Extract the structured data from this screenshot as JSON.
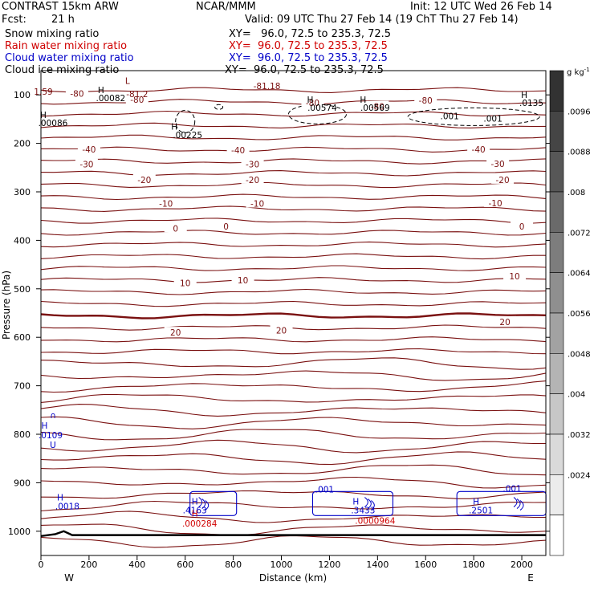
{
  "header": {
    "model": "CONTRAST 15km ARW",
    "center": "NCAR/MMM",
    "init": "Init: 12 UTC Wed 26 Feb 14",
    "fcst_label": "Fcst:",
    "fcst_value": "21 h",
    "valid": "Valid: 09 UTC Thu 27 Feb 14 (19 ChT Thu 27 Feb 14)"
  },
  "fields": [
    {
      "label": "Snow mixing ratio",
      "xy": "XY=   96.0, 72.5 to 235.3, 72.5",
      "color": "#000000"
    },
    {
      "label": "Rain water mixing ratio",
      "xy": "XY=  96.0, 72.5 to 235.3, 72.5",
      "color": "#d00000"
    },
    {
      "label": "Cloud water mixing ratio",
      "xy": "XY=  96.0, 72.5 to 235.3, 72.5",
      "color": "#0000c8"
    },
    {
      "label": "Cloud ice mixing ratio",
      "xy": "XY=  96.0, 72.5 to 235.3, 72.5",
      "color": "#000000"
    }
  ],
  "colorbar": {
    "unit": "g kg",
    "unit_exp": "-1",
    "labels": [
      ".0096",
      ".0088",
      ".008",
      ".0072",
      ".0064",
      ".0056",
      ".0048",
      ".004",
      ".0032",
      ".0024"
    ]
  },
  "chart_data": {
    "type": "contour",
    "xlabel": "Distance (km)",
    "ylabel": "Pressure (hPa)",
    "xlim": [
      0,
      2100
    ],
    "ylim": [
      1050,
      50
    ],
    "x_ticks": [
      "0",
      "200",
      "400",
      "600",
      "800",
      "1000",
      "1200",
      "1400",
      "1600",
      "1800",
      "2000"
    ],
    "y_ticks": [
      "100",
      "200",
      "300",
      "400",
      "500",
      "600",
      "700",
      "800",
      "900",
      "1000"
    ],
    "x_end_labels": {
      "left": "W",
      "right": "E"
    },
    "temperature_labels": [
      "-80",
      "-40",
      "-30",
      "-20",
      "-10",
      "0",
      "10",
      "20"
    ],
    "annotations": [
      {
        "text": "1.59",
        "x": 10,
        "p": 100,
        "color": "#7a1010"
      },
      {
        "text": "L",
        "x": 360,
        "p": 77,
        "color": "#7a1010"
      },
      {
        "text": "-81.2",
        "x": 400,
        "p": 105,
        "color": "#7a1010"
      },
      {
        "text": "-81.18",
        "x": 940,
        "p": 88,
        "color": "#7a1010"
      },
      {
        "text": "H",
        "x": 250,
        "p": 96,
        "color": "#000000"
      },
      {
        "text": ".00082",
        "x": 290,
        "p": 113,
        "color": "#000000"
      },
      {
        "text": "H",
        "x": 10,
        "p": 148,
        "color": "#000000"
      },
      {
        "text": ".00086",
        "x": 50,
        "p": 164,
        "color": "#000000"
      },
      {
        "text": "H",
        "x": 555,
        "p": 172,
        "color": "#000000"
      },
      {
        "text": ".00225",
        "x": 610,
        "p": 189,
        "color": "#000000"
      },
      {
        "text": "H",
        "x": 1120,
        "p": 116,
        "color": "#000000"
      },
      {
        "text": ".00574",
        "x": 1170,
        "p": 133,
        "color": "#000000"
      },
      {
        "text": "H",
        "x": 1340,
        "p": 116,
        "color": "#000000"
      },
      {
        "text": ".00569",
        "x": 1390,
        "p": 133,
        "color": "#000000"
      },
      {
        "text": "H",
        "x": 2010,
        "p": 106,
        "color": "#000000"
      },
      {
        "text": ".0135",
        "x": 2040,
        "p": 123,
        "color": "#000000"
      },
      {
        "text": ".001",
        "x": 1700,
        "p": 150,
        "color": "#000000"
      },
      {
        "text": ".001",
        "x": 1880,
        "p": 155,
        "color": "#000000"
      },
      {
        "text": "∩",
        "x": 50,
        "p": 767,
        "color": "#0000c8"
      },
      {
        "text": "H",
        "x": 15,
        "p": 788,
        "color": "#0000c8"
      },
      {
        "text": ".0109",
        "x": 40,
        "p": 808,
        "color": "#0000c8"
      },
      {
        "text": "U",
        "x": 50,
        "p": 828,
        "color": "#0000c8"
      },
      {
        "text": "H",
        "x": 80,
        "p": 937,
        "color": "#0000c8"
      },
      {
        "text": ".0018",
        "x": 110,
        "p": 955,
        "color": "#0000c8"
      },
      {
        "text": "H",
        "x": 640,
        "p": 945,
        "color": "#0000c8"
      },
      {
        "text": ".4163",
        "x": 640,
        "p": 963,
        "color": "#0000c8"
      },
      {
        "text": "H",
        "x": 640,
        "p": 970,
        "color": "#d00000"
      },
      {
        "text": ".000284",
        "x": 660,
        "p": 990,
        "color": "#d00000"
      },
      {
        "text": ".001",
        "x": 1180,
        "p": 920,
        "color": "#0000c8"
      },
      {
        "text": "H",
        "x": 1310,
        "p": 945,
        "color": "#0000c8"
      },
      {
        "text": ".3433",
        "x": 1340,
        "p": 963,
        "color": "#0000c8"
      },
      {
        "text": ".0000964",
        "x": 1390,
        "p": 985,
        "color": "#d00000"
      },
      {
        "text": ".001",
        "x": 1960,
        "p": 918,
        "color": "#0000c8"
      },
      {
        "text": "H",
        "x": 1810,
        "p": 945,
        "color": "#0000c8"
      },
      {
        "text": ".2501",
        "x": 1830,
        "p": 963,
        "color": "#0000c8"
      }
    ]
  }
}
